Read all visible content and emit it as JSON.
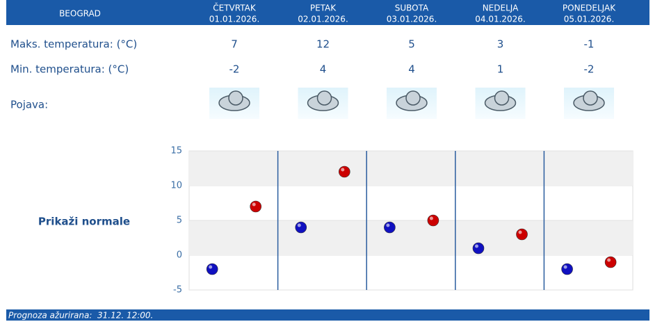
{
  "header": {
    "city": "BEOGRAD",
    "days": [
      {
        "name": "ČETVRTAK",
        "date": "01.01.2026."
      },
      {
        "name": "PETAK",
        "date": "02.01.2026."
      },
      {
        "name": "SUBOTA",
        "date": "03.01.2026."
      },
      {
        "name": "NEDELJA",
        "date": "04.01.2026."
      },
      {
        "name": "PONEDELJAK",
        "date": "05.01.2026."
      }
    ]
  },
  "weather_label": "Pojava:",
  "normals_link": "Prikaži normale",
  "footer": "Prognoza ažurirana:  31.12. 12:00.",
  "chart_data": {
    "type": "scatter",
    "ylim": [
      -5,
      15
    ],
    "yticks": [
      -5,
      0,
      5,
      10,
      15
    ],
    "grid": true,
    "series": [
      {
        "name": "Maks. temperatura: (°C)",
        "color": "#cc0000",
        "values": [
          7,
          12,
          5,
          3,
          -1
        ]
      },
      {
        "name": "Min. temperatura: (°C)",
        "color": "#1010c0",
        "values": [
          -2,
          4,
          4,
          1,
          -2
        ]
      }
    ]
  }
}
